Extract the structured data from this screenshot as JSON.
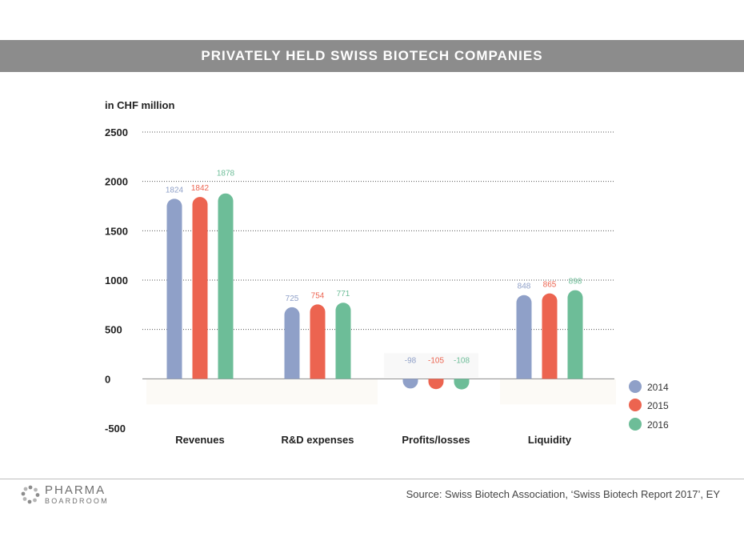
{
  "header": {
    "title": "PRIVATELY HELD SWISS BIOTECH COMPANIES"
  },
  "footer": {
    "logo_top": "PHARMA",
    "logo_bottom": "BOARDROOM",
    "source": "Source: Swiss Biotech Association, ‘Swiss Biotech Report 2017’, EY"
  },
  "chart_data": {
    "type": "bar",
    "title": "PRIVATELY HELD SWISS BIOTECH COMPANIES",
    "ylabel": "in CHF million",
    "xlabel": "",
    "categories": [
      "Revenues",
      "R&D expenses",
      "Profits/losses",
      "Liquidity"
    ],
    "series": [
      {
        "name": "2014",
        "color": "#8fa0c8",
        "values": [
          1824,
          725,
          -98,
          848
        ]
      },
      {
        "name": "2015",
        "color": "#ec6450",
        "values": [
          1842,
          754,
          -105,
          865
        ]
      },
      {
        "name": "2016",
        "color": "#6dbd98",
        "values": [
          1878,
          771,
          -108,
          898
        ]
      }
    ],
    "ylim": [
      -500,
      2500
    ],
    "yticks": [
      2500,
      2000,
      1500,
      1000,
      500,
      0,
      -500
    ],
    "grid": true,
    "legend_position": "bottom-right"
  }
}
